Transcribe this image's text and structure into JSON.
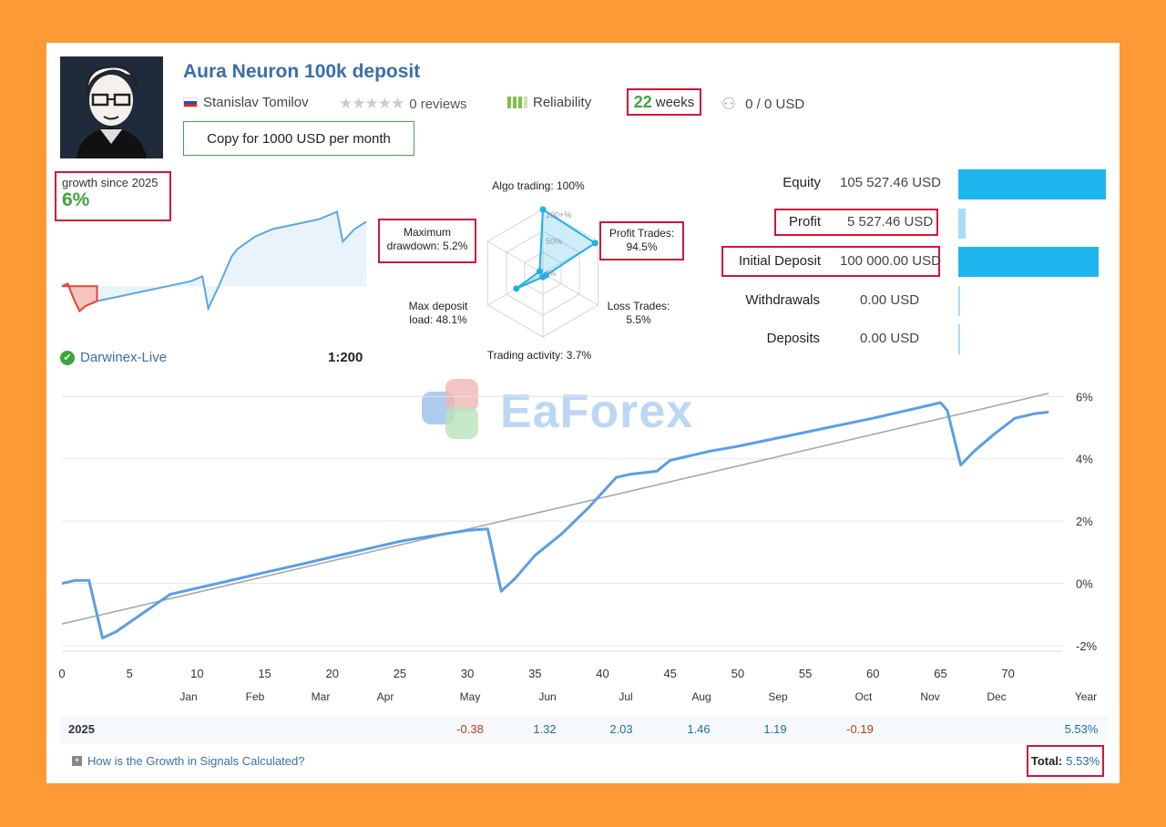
{
  "header": {
    "title": "Aura Neuron 100k deposit",
    "author": "Stanislav Tomilov",
    "reviews": "0 reviews",
    "reliability": "Reliability",
    "weeks_num": "22",
    "weeks_word": "weeks",
    "subscribers": "0 / 0 USD",
    "copy_button": "Copy for 1000 USD per month"
  },
  "growth": {
    "label": "growth since 2025",
    "value": "6%",
    "broker": "Darwinex-Live",
    "leverage": "1:200"
  },
  "radar": {
    "algo": "Algo trading: 100%",
    "profit_l1": "Profit Trades:",
    "profit_l2": "94.5%",
    "loss_l1": "Loss Trades:",
    "loss_l2": "5.5%",
    "activity": "Trading activity: 3.7%",
    "load_l1": "Max deposit",
    "load_l2": "load: 48.1%",
    "dd_l1": "Maximum",
    "dd_l2": "drawdown: 5.2%",
    "ring_100": "100+%",
    "ring_50": "50%",
    "ring_0": "0%",
    "values": {
      "algo": 100,
      "profit": 94.5,
      "loss": 5.5,
      "activity": 3.7,
      "load": 48.1,
      "drawdown": 5.2
    }
  },
  "stats": [
    {
      "label": "Equity",
      "value": "105 527.46 USD",
      "fraction": 1.0
    },
    {
      "label": "Profit",
      "value": "5 527.46 USD",
      "fraction": 0.05
    },
    {
      "label": "Initial Deposit",
      "value": "100 000.00 USD",
      "fraction": 0.95
    },
    {
      "label": "Withdrawals",
      "value": "0.00 USD",
      "fraction": 0.0
    },
    {
      "label": "Deposits",
      "value": "0.00 USD",
      "fraction": 0.0
    }
  ],
  "watermark": "EaForex",
  "chart_data": {
    "type": "line",
    "x": [
      0,
      1,
      2,
      3,
      4,
      5,
      6,
      7,
      8,
      10,
      12,
      15,
      18,
      20,
      22,
      25,
      27,
      30,
      31.5,
      32.5,
      33.5,
      35,
      37,
      39,
      41,
      42,
      44,
      45,
      46,
      48,
      50,
      55,
      60,
      65,
      65.5,
      66.5,
      67.5,
      69,
      70.5,
      72,
      73
    ],
    "y": [
      0.0,
      0.1,
      0.1,
      -1.75,
      -1.55,
      -1.25,
      -0.95,
      -0.65,
      -0.35,
      -0.15,
      0.05,
      0.35,
      0.65,
      0.85,
      1.05,
      1.35,
      1.5,
      1.7,
      1.75,
      -0.25,
      0.15,
      0.9,
      1.6,
      2.45,
      3.4,
      3.5,
      3.6,
      3.95,
      4.05,
      4.25,
      4.4,
      4.85,
      5.3,
      5.8,
      5.55,
      3.8,
      4.25,
      4.8,
      5.3,
      5.45,
      5.5
    ],
    "trend": [
      [
        0,
        -1.3
      ],
      [
        73,
        6.1
      ]
    ],
    "xlim": [
      0,
      74
    ],
    "ylim": [
      -2.7,
      6.3
    ],
    "yticks": [
      "6%",
      "4%",
      "2%",
      "0%",
      "-2%"
    ],
    "ytick_values": [
      6,
      4,
      2,
      0,
      -2
    ],
    "xticks": [
      0,
      5,
      10,
      15,
      20,
      25,
      30,
      35,
      40,
      45,
      50,
      55,
      60,
      65,
      70
    ],
    "months": [
      "Jan",
      "Feb",
      "Mar",
      "Apr",
      "May",
      "Jun",
      "Jul",
      "Aug",
      "Sep",
      "Oct",
      "Nov",
      "Dec",
      "Year"
    ],
    "mini_series": [
      [
        0,
        0
      ],
      [
        1,
        0.1
      ],
      [
        2,
        -0.5
      ],
      [
        3,
        -1.0
      ],
      [
        4,
        -0.8
      ],
      [
        6,
        -0.6
      ],
      [
        8,
        -0.5
      ],
      [
        12,
        -0.3
      ],
      [
        18,
        0.0
      ],
      [
        22,
        0.2
      ],
      [
        24,
        0.4
      ],
      [
        25,
        -0.9
      ],
      [
        27,
        0.1
      ],
      [
        29,
        1.2
      ],
      [
        30,
        1.5
      ],
      [
        33,
        2.0
      ],
      [
        36,
        2.3
      ],
      [
        40,
        2.5
      ],
      [
        44,
        2.7
      ],
      [
        47,
        3.0
      ],
      [
        48,
        1.8
      ],
      [
        50,
        2.3
      ],
      [
        52,
        2.6
      ]
    ]
  },
  "year_row": {
    "year": "2025",
    "values": [
      "",
      "",
      "",
      "",
      "-0.38",
      "1.32",
      "2.03",
      "1.46",
      "1.19",
      "-0.19",
      "",
      "",
      "5.53%"
    ]
  },
  "footer": {
    "howto": "How is the Growth in Signals Calculated?",
    "total_label": "Total:",
    "total_value": "5.53%"
  },
  "colors": {
    "accent": "#3c6ea6",
    "line": "#5b9ee6",
    "bar": "#1eb6ee",
    "highlight": "#d0163a",
    "positive": "#1f6fa0",
    "negative": "#c0391b"
  }
}
